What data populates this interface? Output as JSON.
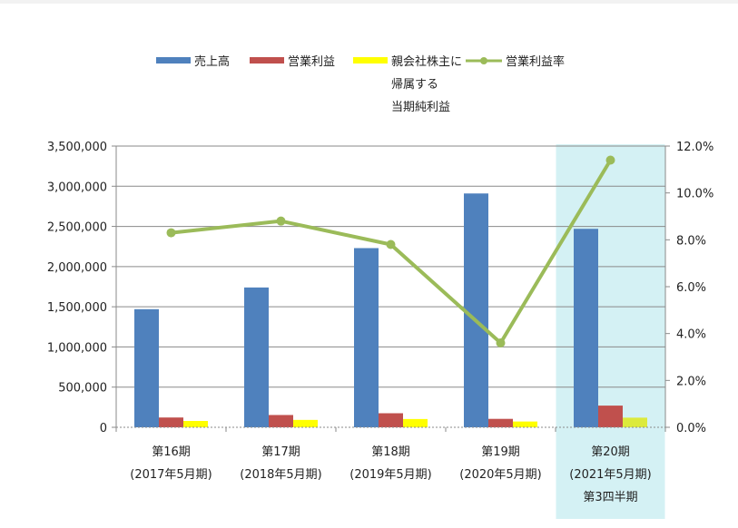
{
  "chart_data": {
    "type": "bar",
    "title": "",
    "xlabel": "",
    "ylabel": "",
    "highlight_category_index": 4,
    "highlight_color": "#d4f1f4",
    "categories": [
      [
        "第16期",
        "(2017年5月期)"
      ],
      [
        "第17期",
        "(2018年5月期)"
      ],
      [
        "第18期",
        "(2019年5月期)"
      ],
      [
        "第19期",
        "(2020年5月期)"
      ],
      [
        "第20期",
        "(2021年5月期)",
        "第3四半期"
      ]
    ],
    "ylim": [
      0,
      3500000
    ],
    "y_ticks": [
      "0",
      "500,000",
      "1,000,000",
      "1,500,000",
      "2,000,000",
      "2,500,000",
      "3,000,000",
      "3,500,000"
    ],
    "y2lim": [
      0,
      12
    ],
    "y2_ticks": [
      "0.0%",
      "2.0%",
      "4.0%",
      "6.0%",
      "8.0%",
      "10.0%",
      "12.0%"
    ],
    "series": [
      {
        "name": "売上高",
        "type": "bar",
        "axis": "left",
        "color": "#4f81bd",
        "values": [
          1470000,
          1740000,
          2230000,
          2910000,
          2470000
        ]
      },
      {
        "name": "営業利益",
        "type": "bar",
        "axis": "left",
        "color": "#c0504d",
        "values": [
          122000,
          153000,
          175000,
          105000,
          270000
        ]
      },
      {
        "name": "親会社株主に帰属する当期純利益",
        "type": "bar",
        "axis": "left",
        "color": "#ffff00",
        "highlight_color": "#dcea3c",
        "values": [
          79000,
          92000,
          103000,
          72000,
          120000
        ]
      },
      {
        "name": "営業利益率",
        "type": "line",
        "axis": "right",
        "color": "#9bbb59",
        "values": [
          8.3,
          8.8,
          7.8,
          3.6,
          11.4
        ]
      }
    ],
    "legend": {
      "position": "top",
      "items": [
        {
          "lines": [
            "売上高"
          ],
          "type": "bar",
          "color": "#4f81bd"
        },
        {
          "lines": [
            "営業利益"
          ],
          "type": "bar",
          "color": "#c0504d"
        },
        {
          "lines": [
            "親会社株主に",
            "帰属する",
            "当期純利益"
          ],
          "type": "bar",
          "color": "#ffff00"
        },
        {
          "lines": [
            "営業利益率"
          ],
          "type": "line",
          "color": "#9bbb59"
        }
      ]
    },
    "grid": true
  }
}
